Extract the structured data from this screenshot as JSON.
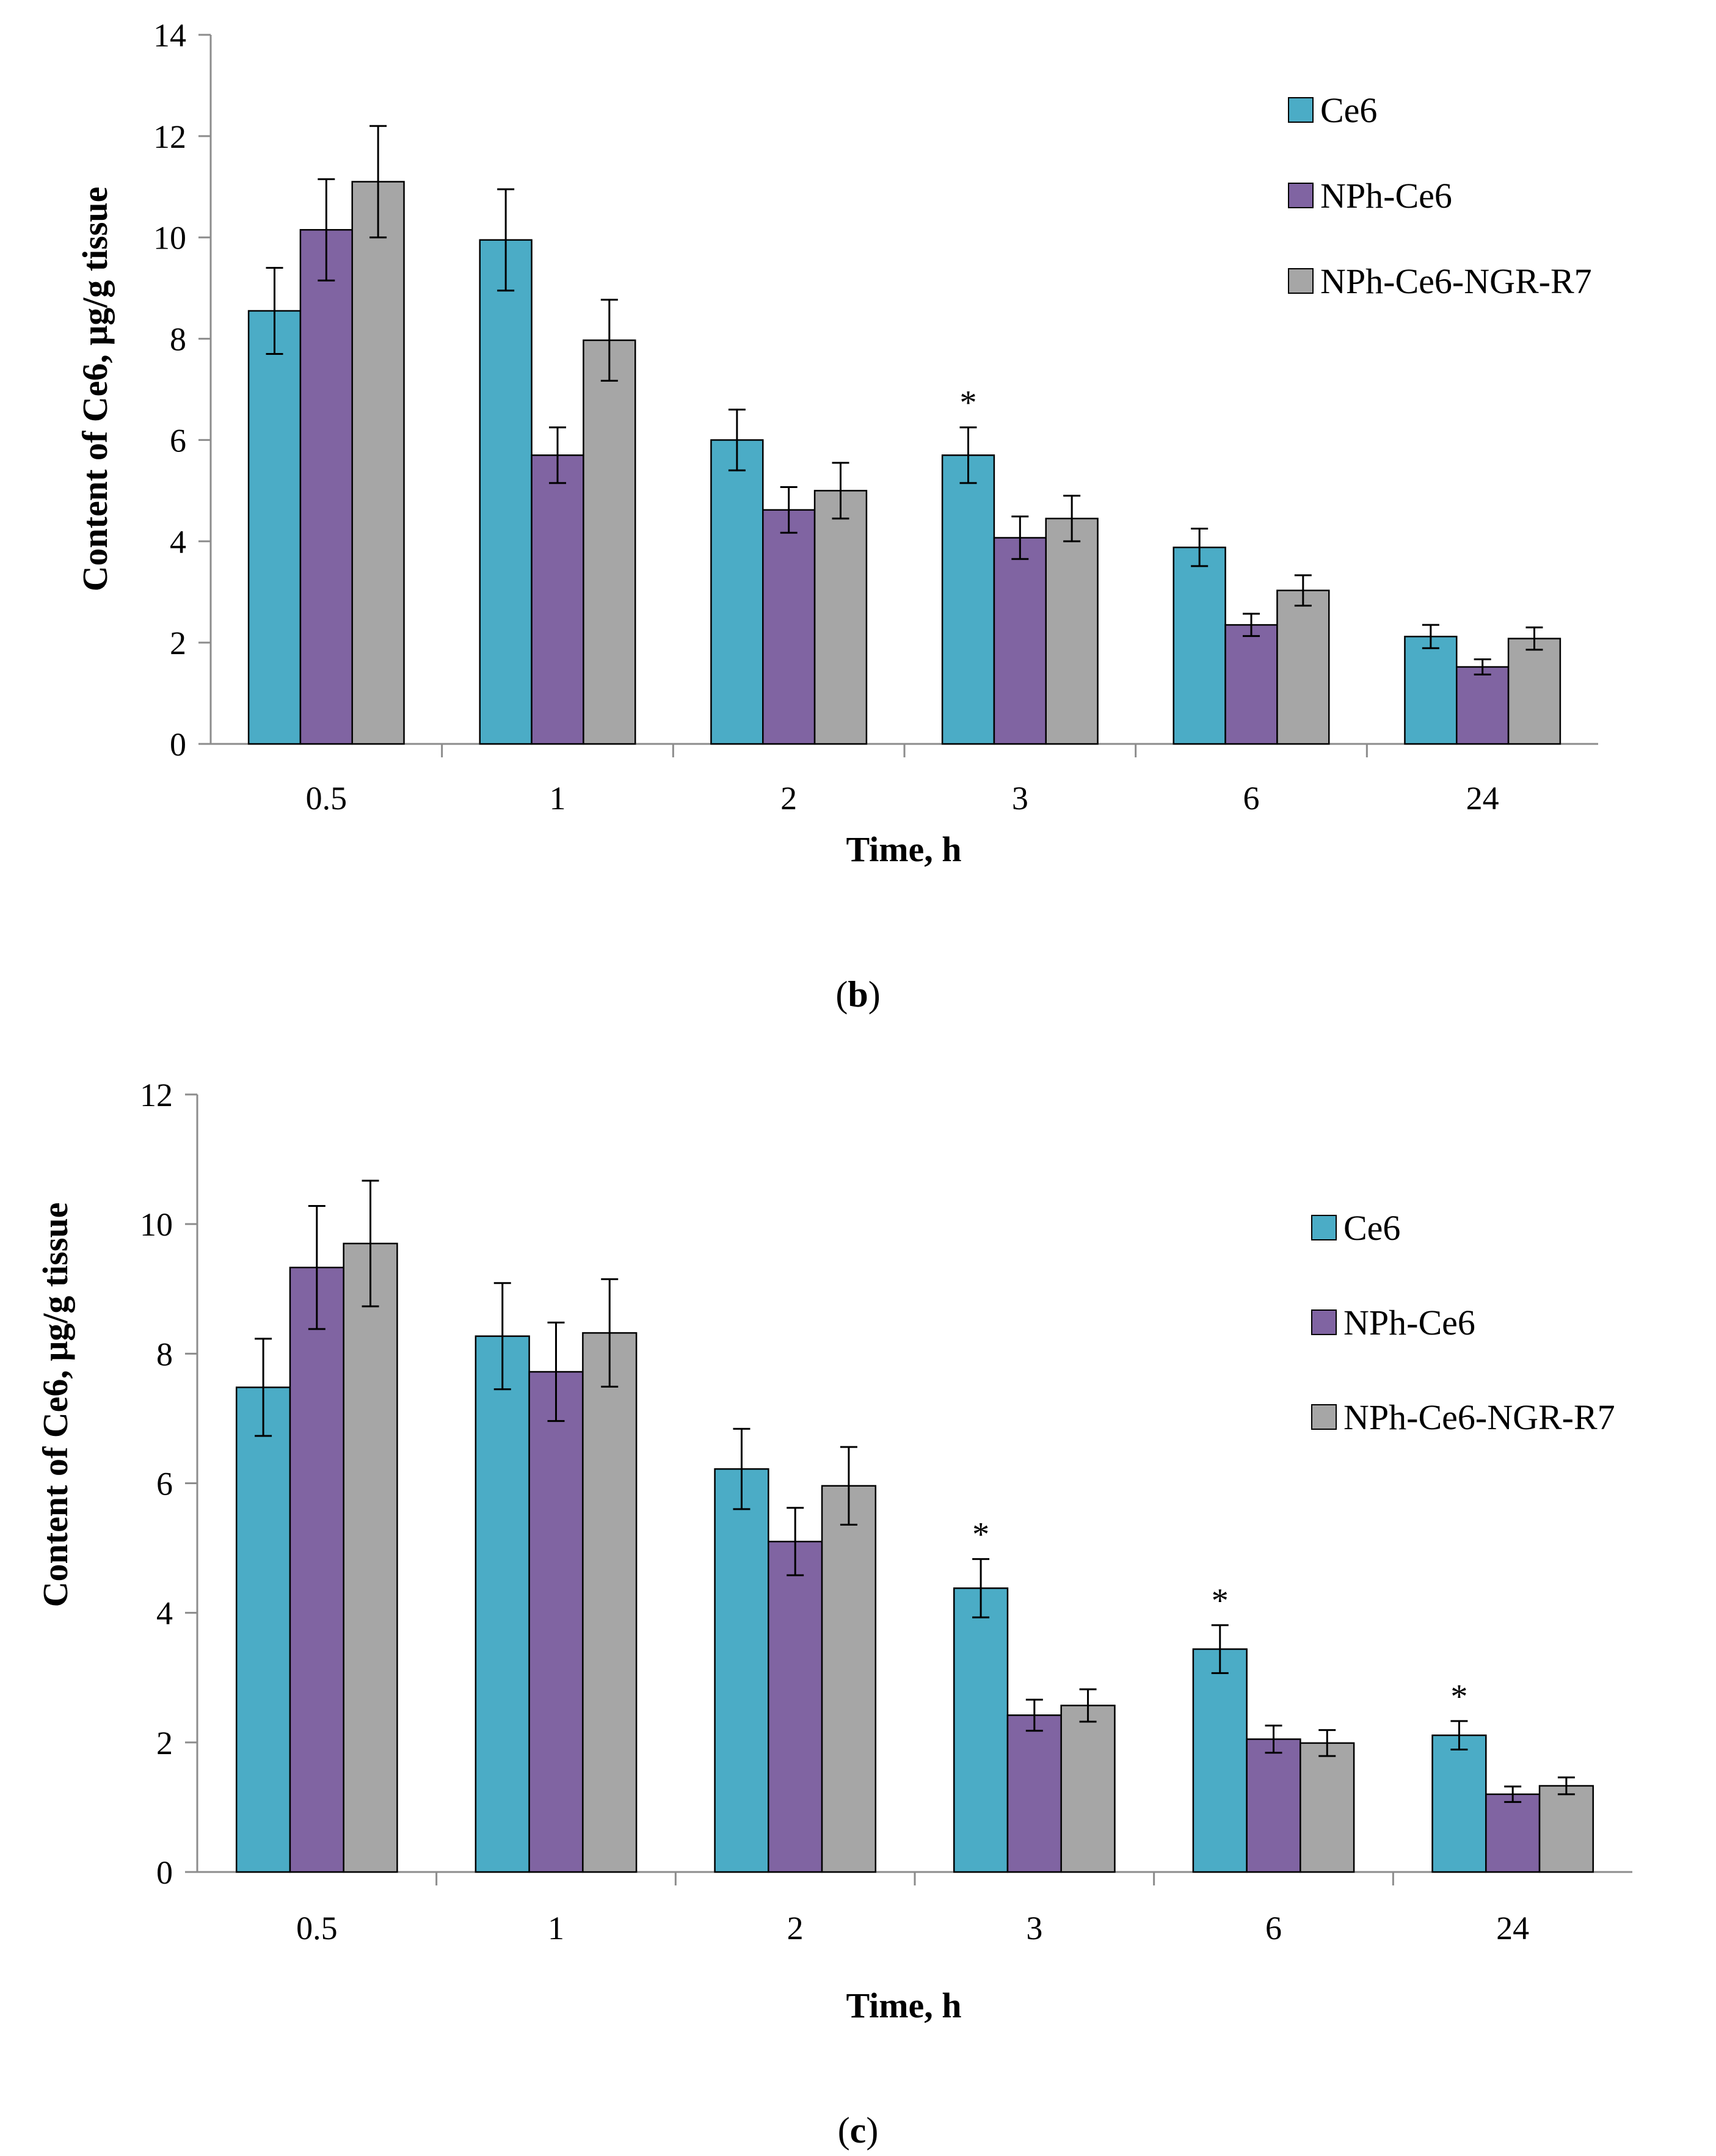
{
  "colors": {
    "Ce6": "#4bacc6",
    "NPh-Ce6": "#8064a2",
    "NPh-Ce6-NGR-R7": "#a6a6a6"
  },
  "chart_data": [
    {
      "type": "bar",
      "panel_label": {
        "open": "(",
        "letter": "b",
        "close": ")"
      },
      "title": "",
      "xlabel": "Time, h",
      "ylabel": "Content of Ce6, μg/g tissue",
      "ylim": [
        0,
        14
      ],
      "yticks": [
        0,
        2,
        4,
        6,
        8,
        10,
        12,
        14
      ],
      "categories": [
        "0.5",
        "1",
        "2",
        "3",
        "6",
        "24"
      ],
      "legend_position": "top-right",
      "series": [
        {
          "name": "Ce6",
          "values": [
            8.55,
            9.95,
            6.0,
            5.7,
            3.88,
            2.12
          ],
          "errors": [
            0.85,
            1.0,
            0.6,
            0.55,
            0.37,
            0.23
          ]
        },
        {
          "name": "NPh-Ce6",
          "values": [
            10.15,
            5.7,
            4.62,
            4.07,
            2.35,
            1.52
          ],
          "errors": [
            1.0,
            0.55,
            0.45,
            0.42,
            0.22,
            0.15
          ]
        },
        {
          "name": "NPh-Ce6-NGR-R7",
          "values": [
            11.1,
            7.97,
            5.0,
            4.45,
            3.03,
            2.08
          ],
          "errors": [
            1.1,
            0.8,
            0.55,
            0.45,
            0.3,
            0.22
          ]
        }
      ],
      "annotations": [
        {
          "category": "3",
          "series": "Ce6",
          "text": "*"
        }
      ]
    },
    {
      "type": "bar",
      "panel_label": {
        "open": "(",
        "letter": "c",
        "close": ")"
      },
      "title": "",
      "xlabel": "Time, h",
      "ylabel": "Content of Ce6, μg/g tissue",
      "ylim": [
        0,
        12
      ],
      "yticks": [
        0,
        2,
        4,
        6,
        8,
        10,
        12
      ],
      "categories": [
        "0.5",
        "1",
        "2",
        "3",
        "6",
        "24"
      ],
      "legend_position": "right",
      "series": [
        {
          "name": "Ce6",
          "values": [
            7.48,
            8.27,
            6.22,
            4.38,
            3.44,
            2.11
          ],
          "errors": [
            0.75,
            0.82,
            0.62,
            0.45,
            0.37,
            0.22
          ]
        },
        {
          "name": "NPh-Ce6",
          "values": [
            9.33,
            7.72,
            5.1,
            2.42,
            2.05,
            1.2
          ],
          "errors": [
            0.95,
            0.76,
            0.52,
            0.24,
            0.21,
            0.12
          ]
        },
        {
          "name": "NPh-Ce6-NGR-R7",
          "values": [
            9.7,
            8.32,
            5.96,
            2.57,
            1.99,
            1.33
          ],
          "errors": [
            0.97,
            0.83,
            0.6,
            0.25,
            0.2,
            0.13
          ]
        }
      ],
      "annotations": [
        {
          "category": "3",
          "series": "Ce6",
          "text": "*"
        },
        {
          "category": "6",
          "series": "Ce6",
          "text": "*"
        },
        {
          "category": "24",
          "series": "Ce6",
          "text": "*"
        }
      ]
    }
  ]
}
